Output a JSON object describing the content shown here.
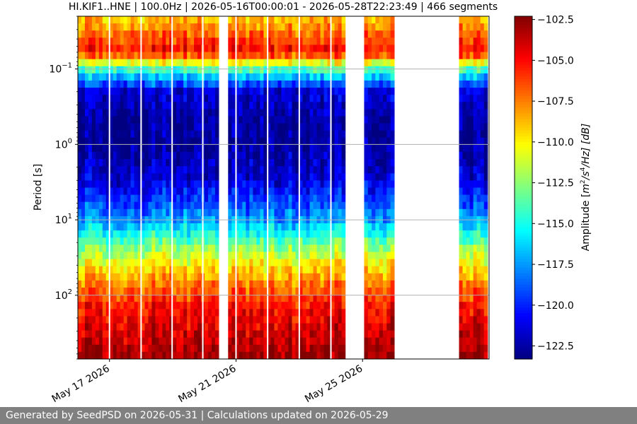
{
  "chart_data": {
    "type": "heatmap",
    "title": "HI.KIF1..HNE | 100.0Hz | 2026-05-16T00:00:01 - 2026-05-28T22:23:49 | 466 segments",
    "ylabel": "Period [s]",
    "yscale": "log",
    "yaxis_inverted": true,
    "ylim": [
      0.02,
      700
    ],
    "y_ticks": [
      {
        "value": 0.1,
        "base": "10",
        "exp": "−1"
      },
      {
        "value": 1,
        "base": "10",
        "exp": "0"
      },
      {
        "value": 10,
        "base": "10",
        "exp": "1"
      },
      {
        "value": 100,
        "base": "10",
        "exp": "2"
      }
    ],
    "xlim_days": [
      0,
      13
    ],
    "x_ticks": [
      {
        "day": 1,
        "label": "May 17 2026"
      },
      {
        "day": 5,
        "label": "May 21 2026"
      },
      {
        "day": 9,
        "label": "May 25 2026"
      }
    ],
    "grid": "horizontal",
    "data_segments_days": [
      [
        0.0,
        4.45
      ],
      [
        4.75,
        8.45
      ],
      [
        9.05,
        10.0
      ],
      [
        12.05,
        12.95
      ]
    ],
    "short_gaps_days": [
      1.0,
      2.0,
      2.98,
      3.95,
      5.0,
      6.0,
      7.0,
      8.0,
      10.85,
      11.1
    ],
    "period_profile": [
      {
        "period": 0.02,
        "amp": -109.0
      },
      {
        "period": 0.06,
        "amp": -105.0
      },
      {
        "period": 0.1,
        "amp": -114.0
      },
      {
        "period": 0.2,
        "amp": -121.5
      },
      {
        "period": 0.5,
        "amp": -122.8
      },
      {
        "period": 1,
        "amp": -122.8
      },
      {
        "period": 3,
        "amp": -121.5
      },
      {
        "period": 10,
        "amp": -117.5
      },
      {
        "period": 25,
        "amp": -112.0
      },
      {
        "period": 60,
        "amp": -108.0
      },
      {
        "period": 150,
        "amp": -105.0
      },
      {
        "period": 700,
        "amp": -102.8
      }
    ],
    "colorbar": {
      "label_prefix": "Amplitude [",
      "label_unit": "m",
      "label_exp1": "2",
      "label_mid": "/s",
      "label_exp2": "4",
      "label_end": "/Hz] [dB]",
      "vmin": -123.3,
      "vmax": -102.3,
      "colormap": "jet",
      "ticks": [
        -102.5,
        -105.0,
        -107.5,
        -110.0,
        -112.5,
        -115.0,
        -117.5,
        -120.0,
        -122.5
      ],
      "tick_labels": [
        "−102.5",
        "−105.0",
        "−107.5",
        "−110.0",
        "−112.5",
        "−115.0",
        "−117.5",
        "−120.0",
        "−122.5"
      ]
    }
  },
  "footer": {
    "text": "Generated by SeedPSD on 2026-05-31 | Calculations updated on 2026-05-29"
  }
}
